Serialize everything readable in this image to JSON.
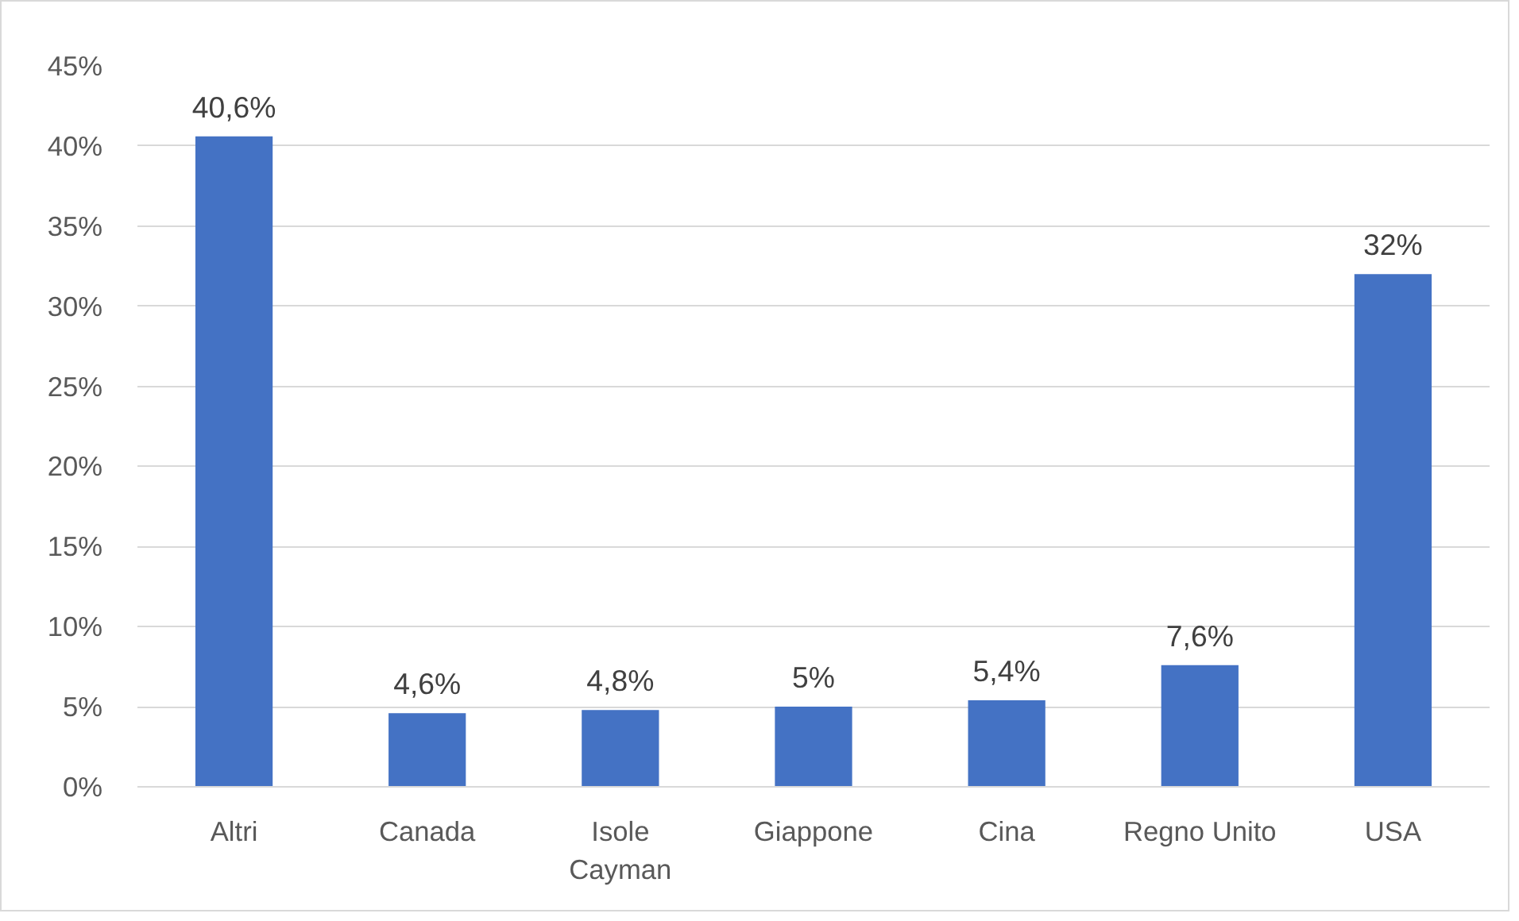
{
  "chart_data": {
    "type": "bar",
    "categories": [
      "Altri",
      "Canada",
      "Isole Cayman",
      "Giappone",
      "Cina",
      "Regno Unito",
      "USA"
    ],
    "values": [
      40.6,
      4.6,
      4.8,
      5,
      5.4,
      7.6,
      32
    ],
    "value_labels": [
      "40,6%",
      "4,6%",
      "4,8%",
      "5%",
      "5,4%",
      "7,6%",
      "32%"
    ],
    "color": "#4472c4",
    "ylim": [
      0,
      45
    ],
    "yticks": [
      {
        "value": 0,
        "label": "0%"
      },
      {
        "value": 5,
        "label": "5%"
      },
      {
        "value": 10,
        "label": "10%"
      },
      {
        "value": 15,
        "label": "15%"
      },
      {
        "value": 20,
        "label": "20%"
      },
      {
        "value": 25,
        "label": "25%"
      },
      {
        "value": 30,
        "label": "30%"
      },
      {
        "value": 35,
        "label": "35%"
      },
      {
        "value": 40,
        "label": "40%"
      },
      {
        "value": 45,
        "label": "45%"
      }
    ],
    "grid": "y"
  }
}
